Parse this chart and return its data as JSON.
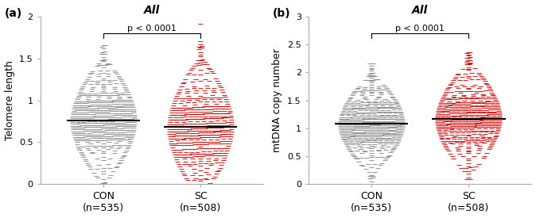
{
  "panel_a": {
    "title": "All",
    "ylabel": "Telomere length",
    "con_n": 535,
    "sc_n": 508,
    "con_median": 0.76,
    "sc_median": 0.68,
    "ylim": [
      0.0,
      2.0
    ],
    "yticks": [
      0.0,
      0.5,
      1.0,
      1.5,
      2.0
    ],
    "con_color": "#888888",
    "sc_color": "#cc0000",
    "pvalue_text": "p < 0.0001",
    "con_spread": 0.27,
    "sc_spread": 0.3,
    "con_seed": 1,
    "sc_seed": 2
  },
  "panel_b": {
    "title": "All",
    "ylabel": "mtDNA copy number",
    "con_n": 535,
    "sc_n": 508,
    "con_median": 1.08,
    "sc_median": 1.17,
    "ylim": [
      0.0,
      3.0
    ],
    "yticks": [
      0.0,
      0.5,
      1.0,
      1.5,
      2.0,
      2.5,
      3.0
    ],
    "con_color": "#888888",
    "sc_color": "#cc0000",
    "pvalue_text": "p < 0.0001",
    "con_spread": 0.32,
    "sc_spread": 0.36,
    "con_seed": 3,
    "sc_seed": 4
  },
  "label_fontsize": 9,
  "title_fontsize": 10,
  "tick_fontsize": 8,
  "annot_fontsize": 8,
  "marker_size": 4,
  "median_lw": 1.5
}
